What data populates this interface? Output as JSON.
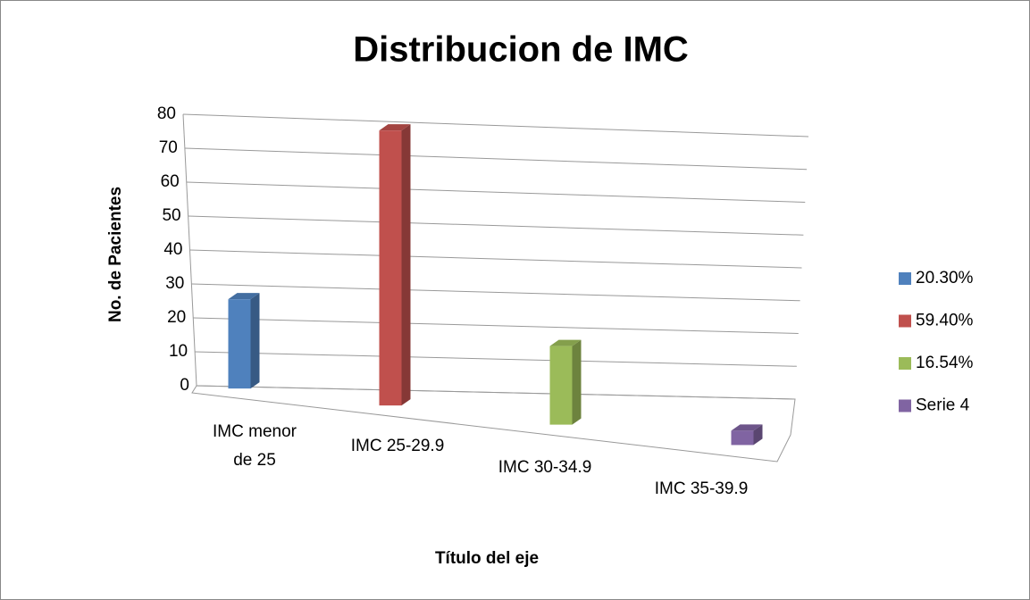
{
  "chart_data": {
    "type": "bar3d",
    "title": "Distribucion de IMC",
    "x_label": "Título del eje",
    "y_label": "No. de Pacientes",
    "categories": [
      "IMC menor de 25",
      "IMC 25-29.9",
      "IMC 30-34.9",
      "IMC 35-39.9"
    ],
    "series": [
      {
        "name": "20.30%",
        "color": "#4f81bd",
        "values": [
          25,
          null,
          null,
          null
        ]
      },
      {
        "name": "59.40%",
        "color": "#c0504d",
        "values": [
          null,
          77,
          null,
          null
        ]
      },
      {
        "name": "16.54%",
        "color": "#9bbb59",
        "values": [
          null,
          null,
          22,
          null
        ]
      },
      {
        "name": "Serie 4",
        "color": "#8064a2",
        "values": [
          null,
          null,
          null,
          4
        ]
      }
    ],
    "ylim": [
      0,
      80
    ],
    "yticks": [
      0,
      10,
      20,
      30,
      40,
      50,
      60,
      70,
      80
    ],
    "grid": true,
    "legend": "right"
  }
}
